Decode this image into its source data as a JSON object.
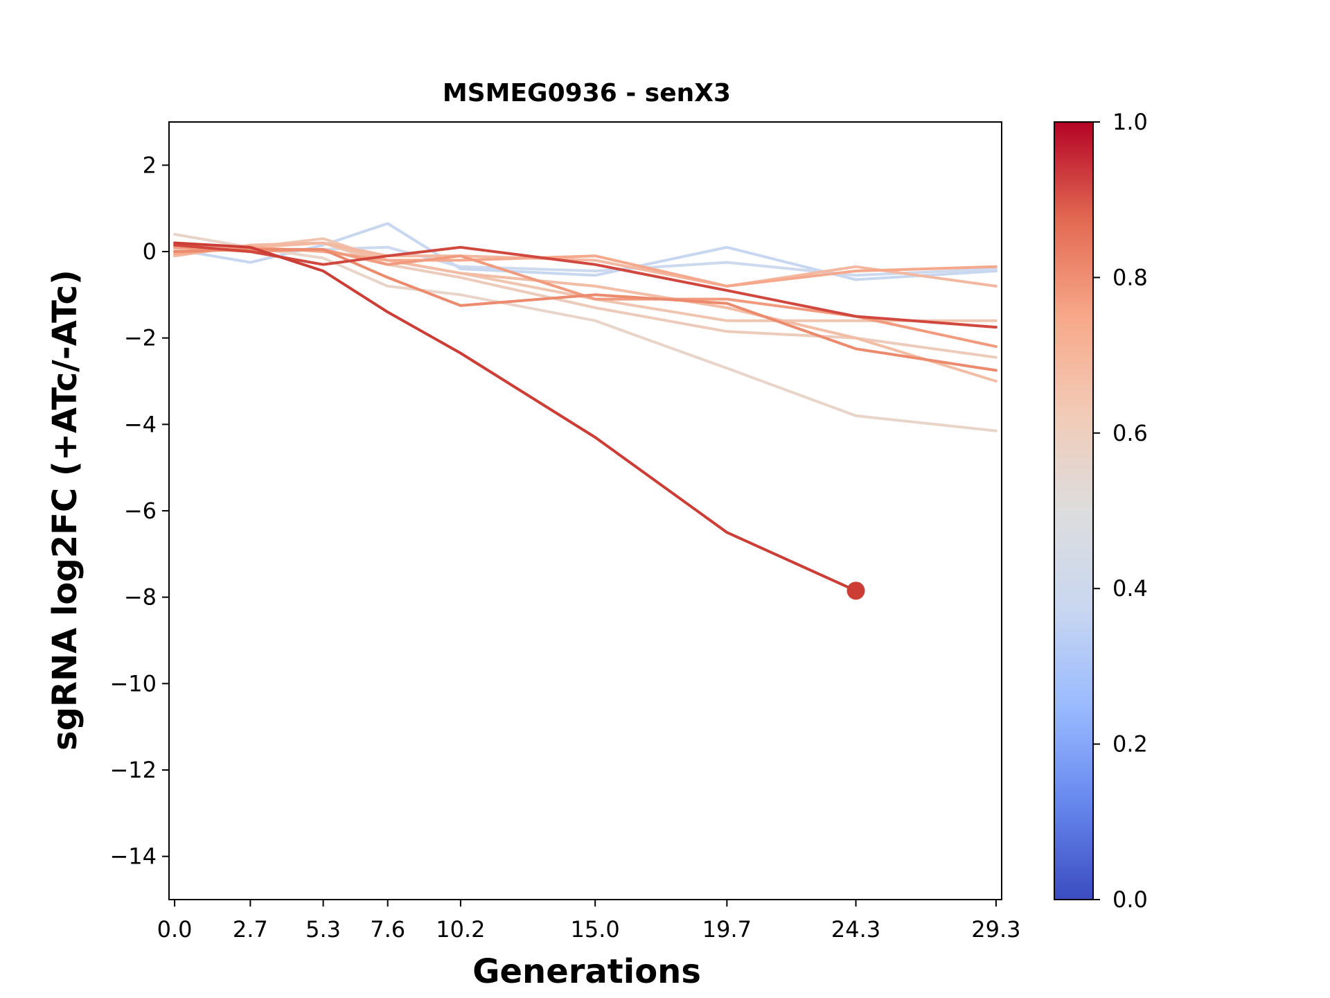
{
  "chart_data": {
    "type": "line",
    "title": "MSMEG0936 - senX3",
    "xlabel": "Generations",
    "ylabel": "sgRNA log2FC (+ATc/-ATc)",
    "xlim": [
      -0.2,
      29.5
    ],
    "ylim": [
      -15,
      3
    ],
    "xticks": [
      0.0,
      2.7,
      5.3,
      7.6,
      10.2,
      15.0,
      19.7,
      24.3,
      29.3
    ],
    "xtick_labels": [
      "0.0",
      "2.7",
      "5.3",
      "7.6",
      "10.2",
      "15.0",
      "19.7",
      "24.3",
      "29.3"
    ],
    "yticks": [
      2,
      0,
      -2,
      -4,
      -6,
      -8,
      -10,
      -12,
      -14
    ],
    "ytick_labels": [
      "2",
      "0",
      "−2",
      "−4",
      "−6",
      "−8",
      "−10",
      "−12",
      "−14"
    ],
    "colorbar": {
      "range": [
        0,
        1
      ],
      "ticks": [
        0.0,
        0.2,
        0.4,
        0.6,
        0.8,
        1.0
      ],
      "tick_labels": [
        "0.0",
        "0.2",
        "0.4",
        "0.6",
        "0.8",
        "1.0"
      ],
      "colormap": "coolwarm",
      "stops": [
        "#3b4cc0",
        "#6788ee",
        "#9abbff",
        "#c9d7f0",
        "#dddddd",
        "#f2cbb7",
        "#f7a889",
        "#e26952",
        "#b40426"
      ]
    },
    "series": [
      {
        "color": "#c7d7f0",
        "x": [
          0.0,
          2.7,
          5.3,
          7.6,
          10.2,
          15.0,
          19.7,
          24.3,
          29.3
        ],
        "y": [
          0.05,
          -0.25,
          0.15,
          0.65,
          -0.4,
          -0.55,
          0.1,
          -0.65,
          -0.45
        ]
      },
      {
        "color": "#cdd9ee",
        "x": [
          0.0,
          2.7,
          5.3,
          7.6,
          10.2,
          15.0,
          19.7,
          24.3,
          29.3
        ],
        "y": [
          0.1,
          0.0,
          0.05,
          0.1,
          -0.35,
          -0.45,
          -0.25,
          -0.55,
          -0.4
        ]
      },
      {
        "color": "#e8d4c9",
        "x": [
          0.0,
          2.7,
          5.3,
          7.6,
          10.2,
          15.0,
          19.7,
          24.3,
          29.3
        ],
        "y": [
          0.4,
          0.1,
          -0.15,
          -0.8,
          -1.0,
          -1.6,
          -2.7,
          -3.8,
          -4.15
        ]
      },
      {
        "color": "#eccbbb",
        "x": [
          0.0,
          2.7,
          5.3,
          7.6,
          10.2,
          15.0,
          19.7,
          24.3,
          29.3
        ],
        "y": [
          0.05,
          0.1,
          0.2,
          -0.3,
          -0.6,
          -1.3,
          -1.85,
          -2.0,
          -2.45
        ]
      },
      {
        "color": "#f0c5b0",
        "x": [
          0.0,
          2.7,
          5.3,
          7.6,
          10.2,
          15.0,
          19.7,
          24.3,
          29.3
        ],
        "y": [
          0.15,
          0.1,
          0.3,
          -0.2,
          -0.5,
          -1.1,
          -1.6,
          -1.6,
          -1.6
        ]
      },
      {
        "color": "#f2bca5",
        "x": [
          0.0,
          2.7,
          5.3,
          7.6,
          10.2,
          15.0,
          19.7,
          24.3,
          29.3
        ],
        "y": [
          0.0,
          0.1,
          0.2,
          -0.2,
          -0.5,
          -0.8,
          -1.3,
          -2.0,
          -3.0
        ]
      },
      {
        "color": "#f4b8a0",
        "x": [
          0.0,
          2.7,
          5.3,
          7.6,
          10.2,
          15.0,
          19.7,
          24.3,
          29.3
        ],
        "y": [
          -0.1,
          0.15,
          0.2,
          -0.1,
          -0.1,
          -0.2,
          -0.8,
          -0.35,
          -0.8
        ]
      },
      {
        "color": "#f5a88b",
        "x": [
          0.0,
          2.7,
          5.3,
          7.6,
          10.2,
          15.0,
          19.7,
          24.3,
          29.3
        ],
        "y": [
          -0.05,
          0.1,
          0.0,
          -0.2,
          -0.2,
          -0.1,
          -0.8,
          -0.45,
          -0.35
        ]
      },
      {
        "color": "#f19a7e",
        "x": [
          0.0,
          2.7,
          5.3,
          7.6,
          10.2,
          15.0,
          19.7,
          24.3,
          29.3
        ],
        "y": [
          0.1,
          0.0,
          0.05,
          -0.3,
          -0.1,
          -1.1,
          -1.1,
          -1.5,
          -2.2
        ]
      },
      {
        "color": "#ec8a6e",
        "x": [
          0.0,
          2.7,
          5.3,
          7.6,
          10.2,
          15.0,
          19.7,
          24.3,
          29.3
        ],
        "y": [
          0.0,
          0.05,
          0.05,
          -0.6,
          -1.25,
          -1.0,
          -1.2,
          -2.25,
          -2.75
        ]
      },
      {
        "color": "#d0473d",
        "x": [
          0.0,
          2.7,
          5.3,
          7.6,
          10.2,
          15.0,
          19.7,
          24.3,
          29.3
        ],
        "y": [
          0.15,
          0.0,
          -0.3,
          -0.1,
          0.1,
          -0.3,
          -0.9,
          -1.5,
          -1.75
        ]
      },
      {
        "color": "#cc3d36",
        "x": [
          0.0,
          2.7,
          5.3,
          7.6,
          10.2,
          15.0,
          19.7,
          24.3
        ],
        "y": [
          0.2,
          0.1,
          -0.45,
          -1.4,
          -2.35,
          -4.3,
          -6.5,
          -7.85
        ],
        "end_marker": true
      }
    ]
  }
}
